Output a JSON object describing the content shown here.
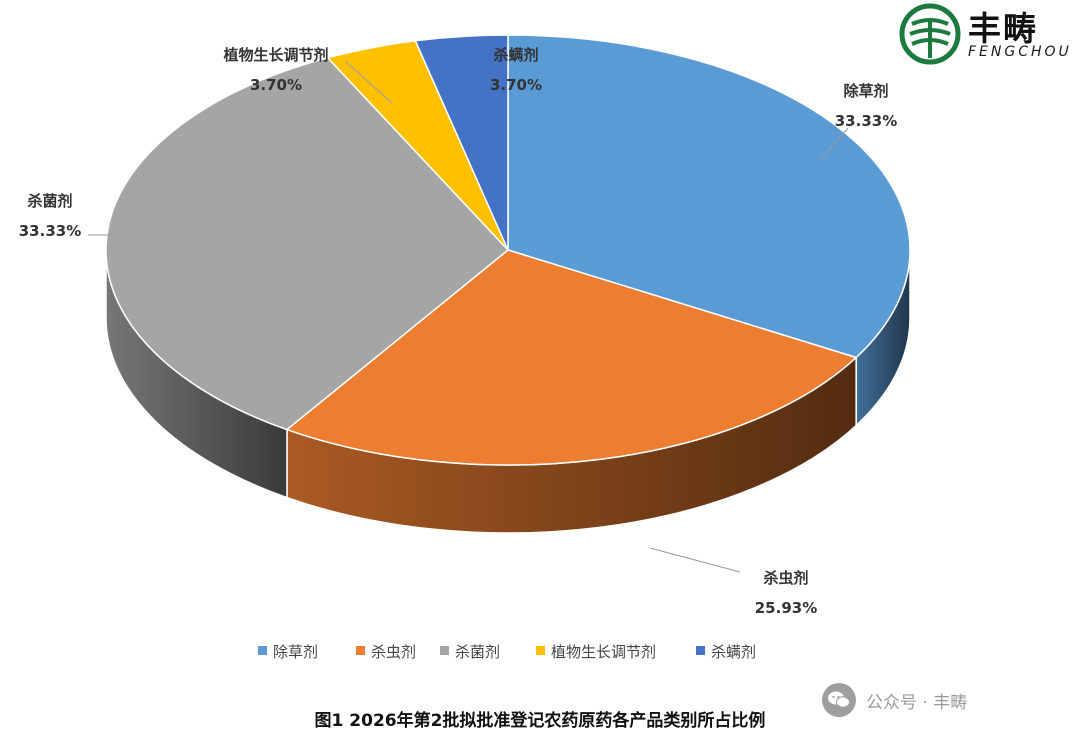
{
  "chart_data": {
    "type": "pie",
    "style": "3d-exploded-none",
    "title": "",
    "categories": [
      "除草剂",
      "杀虫剂",
      "杀菌剂",
      "植物生长调节剂",
      "杀螨剂"
    ],
    "values": [
      33.33,
      25.93,
      33.33,
      3.7,
      3.7
    ],
    "labels": [
      "33.33%",
      "25.93%",
      "33.33%",
      "3.70%",
      "3.70%"
    ],
    "colors": [
      "#5b9bd5",
      "#ed7d31",
      "#a5a5a5",
      "#ffc000",
      "#4472c4"
    ],
    "legend": "bottom"
  },
  "caption": "图1   2026年第2批拟批准登记农药原药各产品类别所占比例",
  "logo": {
    "name": "丰畴",
    "sub": "FENGCHOU",
    "icon": "fengchou-logo-icon"
  },
  "watermark": {
    "text": "公众号 · 丰畴",
    "icon": "wechat-icon"
  }
}
